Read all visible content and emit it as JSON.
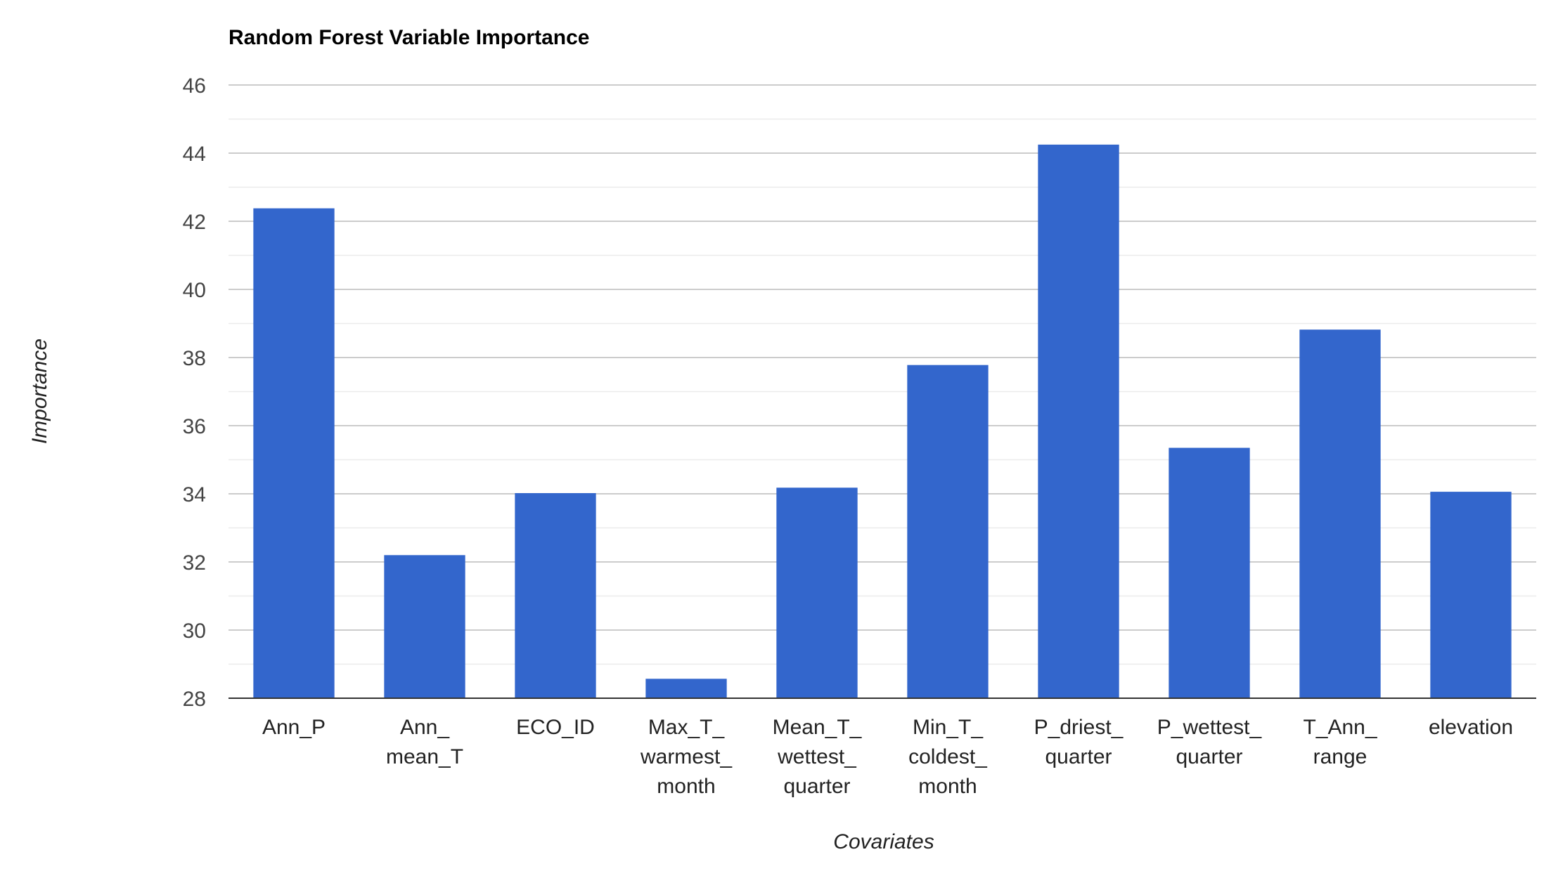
{
  "chart_data": {
    "type": "bar",
    "title": "Random Forest Variable Importance",
    "xlabel": "Covariates",
    "ylabel": "Importance",
    "categories": [
      [
        "Ann_P"
      ],
      [
        "Ann_",
        "mean_T"
      ],
      [
        "ECO_ID"
      ],
      [
        "Max_T_",
        "warmest_",
        "month"
      ],
      [
        "Mean_T_",
        "wettest_",
        "quarter"
      ],
      [
        "Min_T_",
        "coldest_",
        "month"
      ],
      [
        "P_driest_",
        "quarter"
      ],
      [
        "P_wettest_",
        "quarter"
      ],
      [
        "T_Ann_",
        "range"
      ],
      [
        "elevation"
      ]
    ],
    "values": [
      42.38,
      32.2,
      34.02,
      28.57,
      34.18,
      37.78,
      44.25,
      35.35,
      38.82,
      34.06
    ],
    "ylim": [
      28,
      46
    ],
    "yticks": [
      28,
      30,
      32,
      34,
      36,
      38,
      40,
      42,
      44,
      46
    ],
    "grid": true,
    "legend": "none",
    "bar_color": "#3366cc"
  }
}
